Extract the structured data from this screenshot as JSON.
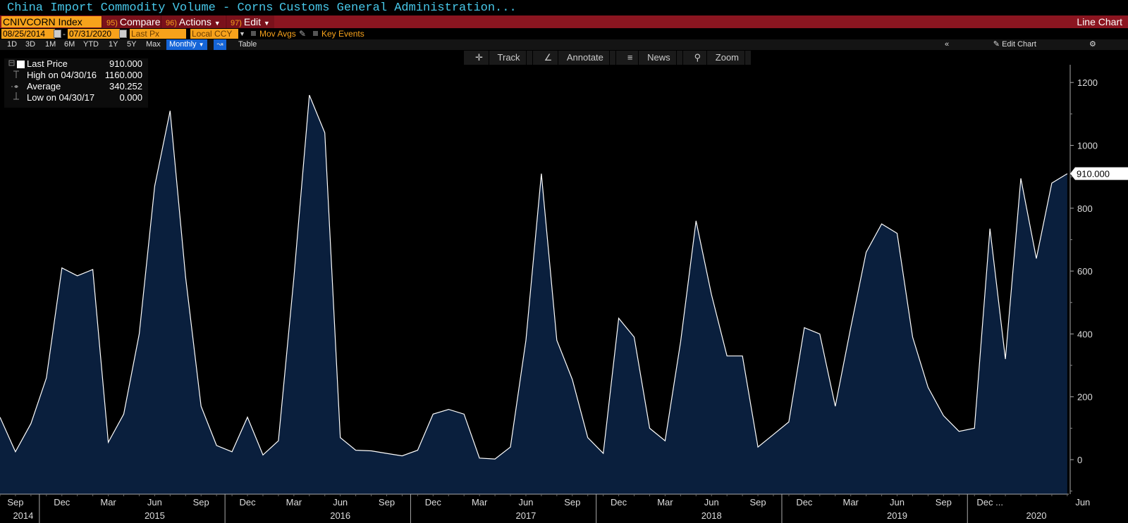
{
  "header": {
    "title": "China Import Commodity Volume - Corns",
    "source": "Customs General Administration..."
  },
  "toolbar": {
    "ticker": "CNIVCORN Index",
    "compare_num": "95)",
    "compare_label": "Compare",
    "actions_num": "96)",
    "actions_label": "Actions",
    "edit_num": "97)",
    "edit_label": "Edit",
    "chart_type": "Line Chart"
  },
  "params": {
    "start_date": "08/25/2014",
    "end_date": "07/31/2020",
    "field": "Last Px",
    "currency": "Local CCY",
    "mov_avgs": "Mov Avgs",
    "key_events": "Key Events"
  },
  "range_buttons": [
    "1D",
    "3D",
    "1M",
    "6M",
    "YTD",
    "1Y",
    "5Y",
    "Max"
  ],
  "period": "Monthly",
  "table_label": "Table",
  "edit_chart_label": "Edit Chart",
  "tools": {
    "track": "Track",
    "annotate": "Annotate",
    "news": "News",
    "zoom": "Zoom"
  },
  "legend": {
    "last_label": "Last Price",
    "last_value": "910.000",
    "high_label": "High on 04/30/16",
    "high_value": "1160.000",
    "avg_label": "Average",
    "avg_value": "340.252",
    "low_label": "Low on 04/30/17",
    "low_value": "0.000"
  },
  "colors": {
    "background": "#000000",
    "area_fill": "#0a1f3d",
    "line": "#ffffff",
    "accent": "#f7a21b",
    "bar_red": "#8b1520",
    "title_cyan": "#47c7e8"
  },
  "chart_data": {
    "type": "area",
    "ylim": [
      -100,
      1230
    ],
    "yticks": [
      0,
      200,
      400,
      600,
      800,
      1000,
      1200
    ],
    "last_value_label": "910.000",
    "month_ticks": [
      {
        "label": "Sep",
        "x": 1
      },
      {
        "label": "Dec",
        "x": 4
      },
      {
        "label": "Mar",
        "x": 7
      },
      {
        "label": "Jun",
        "x": 10
      },
      {
        "label": "Sep",
        "x": 13
      },
      {
        "label": "Dec",
        "x": 16
      },
      {
        "label": "Mar",
        "x": 19
      },
      {
        "label": "Jun",
        "x": 22
      },
      {
        "label": "Sep",
        "x": 25
      },
      {
        "label": "Dec",
        "x": 28
      },
      {
        "label": "Mar",
        "x": 31
      },
      {
        "label": "Jun",
        "x": 34
      },
      {
        "label": "Sep",
        "x": 37
      },
      {
        "label": "Dec",
        "x": 40
      },
      {
        "label": "Mar",
        "x": 43
      },
      {
        "label": "Jun",
        "x": 46
      },
      {
        "label": "Sep",
        "x": 49
      },
      {
        "label": "Dec",
        "x": 52
      },
      {
        "label": "Mar",
        "x": 55
      },
      {
        "label": "Jun",
        "x": 58
      },
      {
        "label": "Sep",
        "x": 61
      },
      {
        "label": "Dec ...",
        "x": 64
      },
      {
        "label": "Jun",
        "x": 70
      }
    ],
    "years": [
      {
        "label": "2014",
        "x": 1.5
      },
      {
        "label": "2015",
        "x": 10
      },
      {
        "label": "2016",
        "x": 22
      },
      {
        "label": "2017",
        "x": 34
      },
      {
        "label": "2018",
        "x": 46
      },
      {
        "label": "2019",
        "x": 58
      },
      {
        "label": "2020",
        "x": 67
      }
    ],
    "year_boundaries": [
      3,
      15,
      27,
      39,
      51,
      63
    ],
    "series": [
      {
        "values": [
          135,
          25,
          115,
          260,
          610,
          585,
          605,
          55,
          145,
          400,
          870,
          1110,
          580,
          170,
          45,
          25,
          135,
          15,
          60,
          580,
          1160,
          1040,
          70,
          30,
          28,
          20,
          12,
          30,
          145,
          160,
          145,
          5,
          2,
          40,
          380,
          910,
          380,
          255,
          70,
          20,
          450,
          390,
          100,
          60,
          375,
          760,
          525,
          330,
          330,
          40,
          80,
          120,
          420,
          400,
          170,
          420,
          660,
          750,
          720,
          390,
          230,
          140,
          90,
          100,
          735,
          320,
          895,
          640,
          880,
          910
        ]
      }
    ]
  }
}
